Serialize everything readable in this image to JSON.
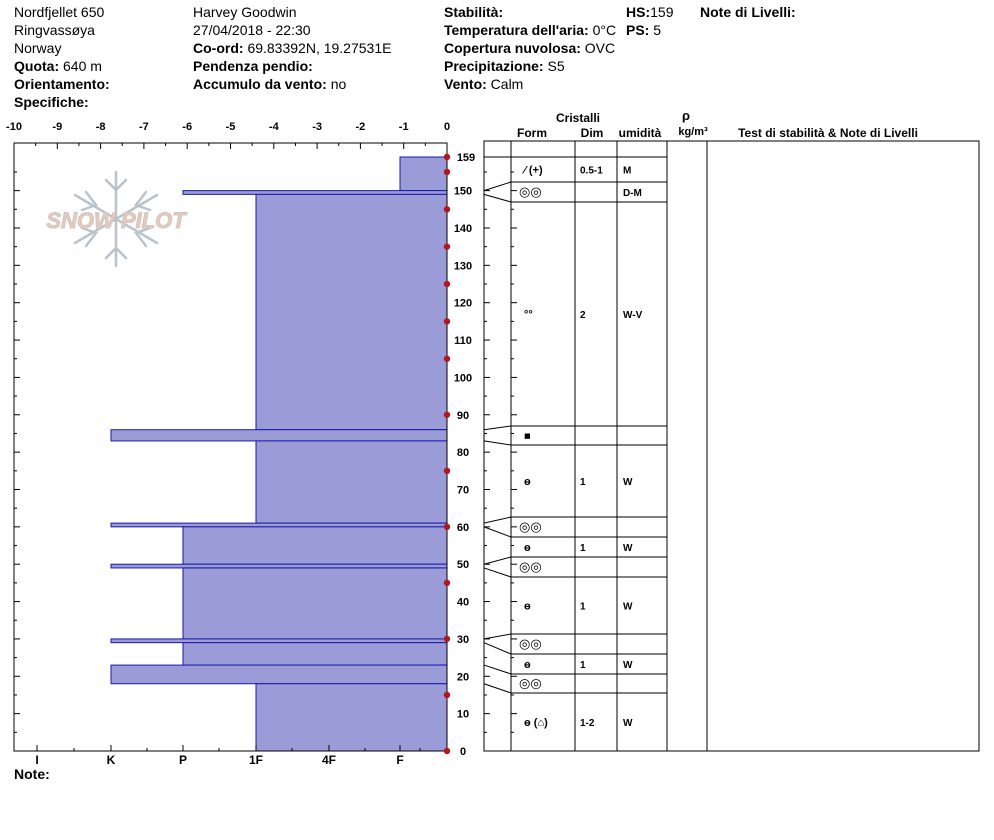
{
  "header": {
    "site": "Nordfjellet 650",
    "location": "Ringvassøya",
    "country": "Norway",
    "altitude_label": "Quota:",
    "altitude_value": "640 m",
    "aspect_label": "Orientamento:",
    "aspect_value": "",
    "specifics_label": "Specifiche:",
    "specifics_value": "",
    "observer": "Harvey Goodwin",
    "datetime": "27/04/2018 - 22:30",
    "coord_label": "Co-ord:",
    "coord_value": "69.83392N, 19.27531E",
    "slope_label": "Pendenza pendio:",
    "slope_value": "",
    "wind_loading_label": "Accumulo da vento:",
    "wind_loading_value": "no",
    "stability_label": "Stabilità:",
    "stability_value": "",
    "air_temp_label": "Temperatura dell'aria:",
    "air_temp_value": "0°C",
    "cloud_label": "Copertura nuvolosa:",
    "cloud_value": "OVC",
    "precip_label": "Precipitazione:",
    "precip_value": "S5",
    "wind_label": "Vento:",
    "wind_value": "Calm",
    "hs_label": "HS:",
    "hs_value": "159",
    "ps_label": "PS:",
    "ps_value": "5",
    "layer_notes_label": "Note di Livelli:"
  },
  "footer": {
    "notes_label": "Note:"
  },
  "watermark": "SNOW PILOT",
  "columns": {
    "crystals": "Cristalli",
    "form": "Form",
    "size": "Dim",
    "moisture": "umidità",
    "density_symbol": "ρ",
    "density_unit": "kg/m³",
    "stability_notes": "Test di stabilità & Note di Livelli"
  },
  "colors": {
    "profile_fill": "#9b9bd7",
    "profile_edge": "#1a1aa6",
    "temp_marker": "#b5161b"
  },
  "chart_data": {
    "type": "bar",
    "title": "",
    "temperature_axis": {
      "ticks": [
        -10,
        -9,
        -8,
        -7,
        -6,
        -5,
        -4,
        -3,
        -2,
        -1,
        0
      ],
      "range": [
        -10,
        0
      ]
    },
    "hardness_axis": {
      "labels": [
        "I",
        "K",
        "P",
        "1F",
        "4F",
        "F"
      ]
    },
    "height_axis": {
      "range": [
        0,
        159
      ],
      "ticks": [
        0,
        10,
        20,
        30,
        40,
        50,
        60,
        70,
        80,
        90,
        100,
        110,
        120,
        130,
        140,
        150
      ],
      "top_label": "159"
    },
    "hardness_layers": [
      {
        "bottom": 150,
        "top": 159,
        "hardness": "F"
      },
      {
        "bottom": 149,
        "top": 150,
        "hardness": "P"
      },
      {
        "bottom": 86,
        "top": 149,
        "hardness": "1F"
      },
      {
        "bottom": 83,
        "top": 86,
        "hardness": "K"
      },
      {
        "bottom": 61,
        "top": 83,
        "hardness": "1F"
      },
      {
        "bottom": 60,
        "top": 61,
        "hardness": "K"
      },
      {
        "bottom": 50,
        "top": 60,
        "hardness": "P"
      },
      {
        "bottom": 49,
        "top": 50,
        "hardness": "K"
      },
      {
        "bottom": 30,
        "top": 49,
        "hardness": "P"
      },
      {
        "bottom": 29,
        "top": 30,
        "hardness": "K"
      },
      {
        "bottom": 23,
        "top": 29,
        "hardness": "P"
      },
      {
        "bottom": 18,
        "top": 23,
        "hardness": "K"
      },
      {
        "bottom": 0,
        "top": 18,
        "hardness": "1F"
      }
    ],
    "temperature_points": [
      {
        "height": 159,
        "temp": 0
      },
      {
        "height": 155,
        "temp": 0
      },
      {
        "height": 145,
        "temp": 0
      },
      {
        "height": 135,
        "temp": 0
      },
      {
        "height": 125,
        "temp": 0
      },
      {
        "height": 115,
        "temp": 0
      },
      {
        "height": 105,
        "temp": 0
      },
      {
        "height": 90,
        "temp": 0
      },
      {
        "height": 75,
        "temp": 0
      },
      {
        "height": 60,
        "temp": 0
      },
      {
        "height": 45,
        "temp": 0
      },
      {
        "height": 30,
        "temp": 0
      },
      {
        "height": 15,
        "temp": 0
      },
      {
        "height": 0,
        "temp": 0
      }
    ],
    "layers": [
      {
        "top": 159,
        "bottom": 150,
        "form": "⁄ (+)",
        "size": "0.5-1",
        "moisture": "M"
      },
      {
        "top": 150,
        "bottom": 149,
        "form": "◎◎",
        "size": "",
        "moisture": "D-M"
      },
      {
        "top": 149,
        "bottom": 86,
        "form": "°°",
        "size": "2",
        "moisture": "W-V"
      },
      {
        "top": 86,
        "bottom": 83,
        "form": "■",
        "size": "",
        "moisture": ""
      },
      {
        "top": 83,
        "bottom": 61,
        "form": "ɵ",
        "size": "1",
        "moisture": "W"
      },
      {
        "top": 61,
        "bottom": 60,
        "form": "◎◎",
        "size": "",
        "moisture": ""
      },
      {
        "top": 60,
        "bottom": 50,
        "form": "ɵ",
        "size": "1",
        "moisture": "W"
      },
      {
        "top": 50,
        "bottom": 49,
        "form": "◎◎",
        "size": "",
        "moisture": ""
      },
      {
        "top": 49,
        "bottom": 30,
        "form": "ɵ",
        "size": "1",
        "moisture": "W"
      },
      {
        "top": 30,
        "bottom": 29,
        "form": "◎◎",
        "size": "",
        "moisture": ""
      },
      {
        "top": 29,
        "bottom": 23,
        "form": "ɵ",
        "size": "1",
        "moisture": "W"
      },
      {
        "top": 23,
        "bottom": 18,
        "form": "◎◎",
        "size": "",
        "moisture": ""
      },
      {
        "top": 18,
        "bottom": 0,
        "form": "ɵ (⌂)",
        "size": "1-2",
        "moisture": "W"
      }
    ]
  }
}
